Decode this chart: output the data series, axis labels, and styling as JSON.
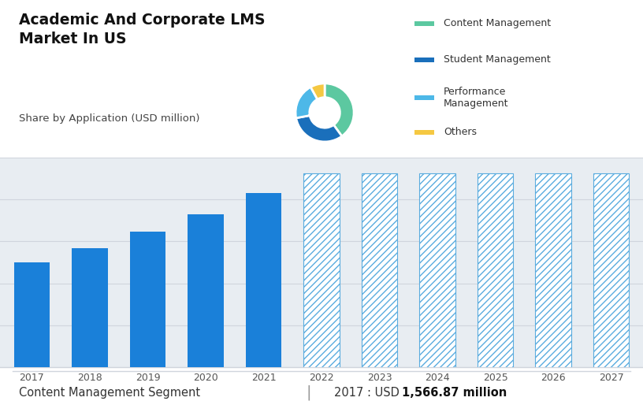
{
  "title": "Academic And Corporate LMS\nMarket In US",
  "subtitle": "Share by Application (USD million)",
  "top_bg_color": "#c8d3e3",
  "bottom_bg_color": "#e8edf2",
  "white_bg": "#ffffff",
  "pie_values": [
    40,
    32,
    20,
    8
  ],
  "pie_colors": [
    "#5cc8a0",
    "#1a6fbb",
    "#4db8e8",
    "#f5c842"
  ],
  "pie_labels": [
    "Content Management",
    "Student Management",
    "Performance\nManagement",
    "Others"
  ],
  "bar_years": [
    "2017",
    "2018",
    "2019",
    "2020",
    "2021",
    "2022",
    "2023",
    "2024",
    "2025",
    "2026",
    "2027"
  ],
  "bar_values": [
    1566.87,
    1780,
    2020,
    2280,
    2600,
    2900,
    2900,
    2900,
    2900,
    2900,
    2900
  ],
  "bar_solid_color": "#1a80d9",
  "bar_hatch_color": "#5aacdf",
  "bar_hatch_edgecolor": "#5aacdf",
  "n_solid": 5,
  "footer_left": "Content Management Segment",
  "footer_right_normal": "2017 : USD ",
  "footer_right_bold": "1,566.87 million",
  "footer_sep": "|",
  "grid_color": "#d0d5dd",
  "hatch_max_value": 2900
}
